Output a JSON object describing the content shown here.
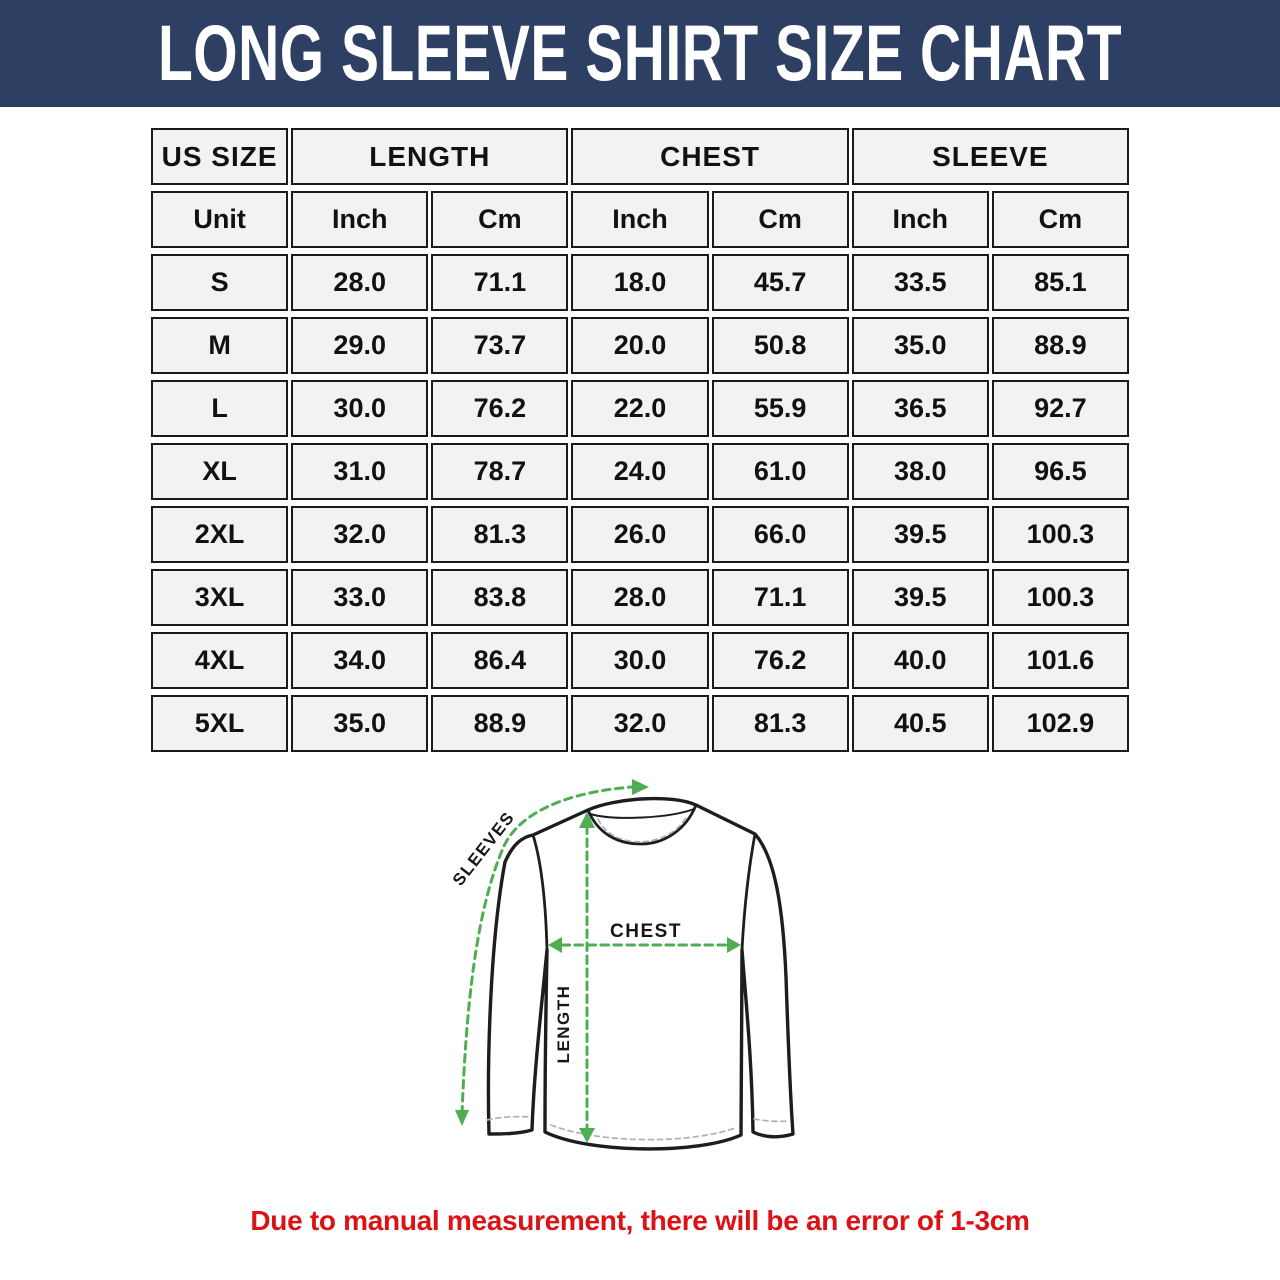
{
  "page": {
    "title": "LONG SLEEVE SHIRT SIZE CHART",
    "footnote": "Due to manual measurement, there will be an error of 1-3cm"
  },
  "colors": {
    "page_bg": "#ffffff",
    "banner_bg": "#2d3f63",
    "banner_text": "#ffffff",
    "cell_bg": "#f2f2f2",
    "cell_border": "#1a1a1a",
    "cell_text": "#111111",
    "note_red": "#dc1215",
    "arrow_green": "#4fae52",
    "shirt_outline": "#1d1d1d",
    "stitch_gray": "#b0b0b0"
  },
  "table": {
    "group_headers": [
      {
        "label": "US SIZE",
        "span": 1
      },
      {
        "label": "LENGTH",
        "span": 2
      },
      {
        "label": "CHEST",
        "span": 2
      },
      {
        "label": "SLEEVE",
        "span": 2
      }
    ],
    "unit_row": [
      "Unit",
      "Inch",
      "Cm",
      "Inch",
      "Cm",
      "Inch",
      "Cm"
    ],
    "rows": [
      {
        "size": "S",
        "values": [
          "28.0",
          "71.1",
          "18.0",
          "45.7",
          "33.5",
          "85.1"
        ]
      },
      {
        "size": "M",
        "values": [
          "29.0",
          "73.7",
          "20.0",
          "50.8",
          "35.0",
          "88.9"
        ]
      },
      {
        "size": "L",
        "values": [
          "30.0",
          "76.2",
          "22.0",
          "55.9",
          "36.5",
          "92.7"
        ]
      },
      {
        "size": "XL",
        "values": [
          "31.0",
          "78.7",
          "24.0",
          "61.0",
          "38.0",
          "96.5"
        ]
      },
      {
        "size": "2XL",
        "values": [
          "32.0",
          "81.3",
          "26.0",
          "66.0",
          "39.5",
          "100.3"
        ]
      },
      {
        "size": "3XL",
        "values": [
          "33.0",
          "83.8",
          "28.0",
          "71.1",
          "39.5",
          "100.3"
        ]
      },
      {
        "size": "4XL",
        "values": [
          "34.0",
          "86.4",
          "30.0",
          "76.2",
          "40.0",
          "101.6"
        ]
      },
      {
        "size": "5XL",
        "values": [
          "35.0",
          "88.9",
          "32.0",
          "81.3",
          "40.5",
          "102.9"
        ]
      }
    ]
  },
  "diagram": {
    "labels": {
      "sleeves": "SLEEVES",
      "chest": "CHEST",
      "length": "LENGTH"
    }
  }
}
